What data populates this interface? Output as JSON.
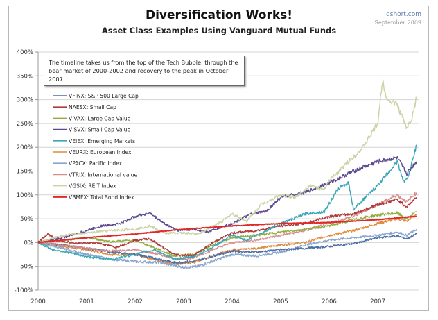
{
  "header": {
    "title": "Diversification Works!",
    "subtitle": "Asset Class Examples Using Vanguard Mutual Funds",
    "source": "dshort.com",
    "date": "September 2009"
  },
  "annotation": "The timeline takes us from the top of the Tech Bubble, through the bear market of 2000-2002 and recovery to the peak in October 2007.",
  "chart_data": {
    "type": "line",
    "title": "Diversification Works!",
    "subtitle": "Asset Class Examples Using Vanguard Mutual Funds",
    "xlabel": "",
    "ylabel": "",
    "xlim": [
      2000,
      2007.8
    ],
    "ylim": [
      -100,
      400
    ],
    "x_ticks": [
      "2000",
      "2001",
      "2002",
      "2003",
      "2004",
      "2005",
      "2006",
      "2007"
    ],
    "y_ticks": [
      "400%",
      "350%",
      "300%",
      "250%",
      "200%",
      "150%",
      "100%",
      "50%",
      "0%",
      "-50%",
      "-100%"
    ],
    "y_tick_values": [
      400,
      350,
      300,
      250,
      200,
      150,
      100,
      50,
      0,
      -50,
      -100
    ],
    "grid": true,
    "legend_position": "left",
    "series": [
      {
        "name": "VFINX: S&P 500 Large Cap",
        "color": "#4a6fa5",
        "x": [
          2000,
          2000.5,
          2001,
          2001.5,
          2002,
          2002.5,
          2002.8,
          2003.2,
          2003.6,
          2004,
          2004.5,
          2005,
          2005.5,
          2006,
          2006.5,
          2007,
          2007.4,
          2007.6,
          2007.8
        ],
        "y": [
          0,
          -5,
          -12,
          -20,
          -25,
          -35,
          -42,
          -40,
          -28,
          -18,
          -20,
          -15,
          -12,
          -8,
          -2,
          10,
          14,
          8,
          18
        ]
      },
      {
        "name": "NAESX: Small Cap",
        "color": "#b03a3a",
        "x": [
          2000,
          2000.2,
          2000.4,
          2000.8,
          2001.2,
          2001.6,
          2002,
          2002.3,
          2002.8,
          2003.2,
          2003.6,
          2004,
          2004.5,
          2005,
          2005.5,
          2006,
          2006.5,
          2007,
          2007.4,
          2007.6,
          2007.8
        ],
        "y": [
          0,
          18,
          5,
          -2,
          0,
          -10,
          5,
          8,
          -25,
          -28,
          0,
          20,
          25,
          35,
          40,
          55,
          60,
          80,
          90,
          75,
          95
        ]
      },
      {
        "name": "VIVAX: Large Cap Value",
        "color": "#8fae3e",
        "x": [
          2000,
          2000.5,
          2001,
          2001.5,
          2002,
          2002.5,
          2002.8,
          2003.2,
          2003.6,
          2004,
          2004.5,
          2005,
          2005.5,
          2006,
          2006.5,
          2007,
          2007.4,
          2007.6,
          2007.8
        ],
        "y": [
          0,
          5,
          10,
          2,
          5,
          -15,
          -28,
          -25,
          -5,
          10,
          15,
          22,
          28,
          35,
          48,
          58,
          62,
          50,
          65
        ]
      },
      {
        "name": "VISVX: Small Cap Value",
        "color": "#5b4a8f",
        "x": [
          2000,
          2000.5,
          2001,
          2001.3,
          2001.7,
          2002,
          2002.3,
          2002.6,
          2002.9,
          2003.2,
          2003.5,
          2004,
          2004.4,
          2004.7,
          2005,
          2005.5,
          2006,
          2006.5,
          2007,
          2007.4,
          2007.6,
          2007.8
        ],
        "y": [
          0,
          10,
          25,
          35,
          40,
          55,
          62,
          40,
          25,
          28,
          22,
          40,
          60,
          65,
          95,
          105,
          125,
          150,
          170,
          178,
          145,
          170
        ]
      },
      {
        "name": "VEIEX: Emerging Markets",
        "color": "#3aa7b8",
        "x": [
          2000,
          2000.3,
          2000.6,
          2001,
          2001.5,
          2002,
          2002.4,
          2002.8,
          2003.2,
          2003.6,
          2004,
          2004.3,
          2004.6,
          2005,
          2005.5,
          2005.9,
          2006.2,
          2006.4,
          2006.5,
          2007,
          2007.4,
          2007.55,
          2007.65,
          2007.8
        ],
        "y": [
          0,
          -15,
          -20,
          -30,
          -35,
          -25,
          -15,
          -35,
          -30,
          -10,
          15,
          5,
          20,
          40,
          60,
          65,
          115,
          125,
          70,
          120,
          170,
          125,
          145,
          205
        ]
      },
      {
        "name": "VEURX: European Index",
        "color": "#e08a3c",
        "x": [
          2000,
          2000.5,
          2001,
          2001.5,
          2002,
          2002.5,
          2002.9,
          2003.2,
          2003.6,
          2004,
          2004.5,
          2005,
          2005.5,
          2006,
          2006.5,
          2007,
          2007.4,
          2007.6,
          2007.8
        ],
        "y": [
          0,
          -8,
          -15,
          -25,
          -25,
          -38,
          -45,
          -42,
          -28,
          -15,
          -12,
          -5,
          0,
          15,
          25,
          40,
          50,
          45,
          60
        ]
      },
      {
        "name": "VPACX: Pacific Index",
        "color": "#8aa4cf",
        "x": [
          2000,
          2000.5,
          2001,
          2001.5,
          2002,
          2002.5,
          2003,
          2003.3,
          2003.7,
          2004,
          2004.5,
          2005,
          2005.5,
          2006,
          2006.5,
          2007,
          2007.4,
          2007.6,
          2007.8
        ],
        "y": [
          0,
          -12,
          -25,
          -35,
          -40,
          -42,
          -52,
          -50,
          -35,
          -25,
          -28,
          -20,
          -5,
          5,
          10,
          15,
          22,
          15,
          28
        ]
      },
      {
        "name": "VTRIX: International value",
        "color": "#d98c8c",
        "x": [
          2000,
          2000.5,
          2001,
          2001.5,
          2002,
          2002.5,
          2002.9,
          2003.2,
          2003.6,
          2004,
          2004.5,
          2005,
          2005.5,
          2006,
          2006.5,
          2007,
          2007.4,
          2007.6,
          2007.8
        ],
        "y": [
          0,
          -5,
          -12,
          -18,
          -15,
          -25,
          -35,
          -32,
          -15,
          0,
          5,
          15,
          25,
          40,
          55,
          80,
          100,
          85,
          105
        ]
      },
      {
        "name": "VGSIX: REIT Index",
        "color": "#c8d4a4",
        "x": [
          2000,
          2000.5,
          2001,
          2001.5,
          2002,
          2002.3,
          2002.6,
          2003,
          2003.3,
          2003.8,
          2004,
          2004.3,
          2004.6,
          2005,
          2005.3,
          2005.6,
          2005.9,
          2006,
          2006.4,
          2006.7,
          2007,
          2007.1,
          2007.2,
          2007.4,
          2007.6,
          2007.7,
          2007.8
        ],
        "y": [
          0,
          15,
          20,
          25,
          28,
          35,
          20,
          20,
          18,
          45,
          60,
          45,
          80,
          100,
          95,
          120,
          110,
          130,
          170,
          200,
          250,
          340,
          300,
          290,
          240,
          260,
          305
        ]
      },
      {
        "name": "VBMFX: Total Bond Index",
        "color": "#e02a2a",
        "x": [
          2000,
          2001,
          2002,
          2003,
          2004,
          2005,
          2006,
          2007,
          2007.8
        ],
        "y": [
          0,
          10,
          18,
          28,
          35,
          40,
          42,
          48,
          55
        ]
      }
    ]
  }
}
